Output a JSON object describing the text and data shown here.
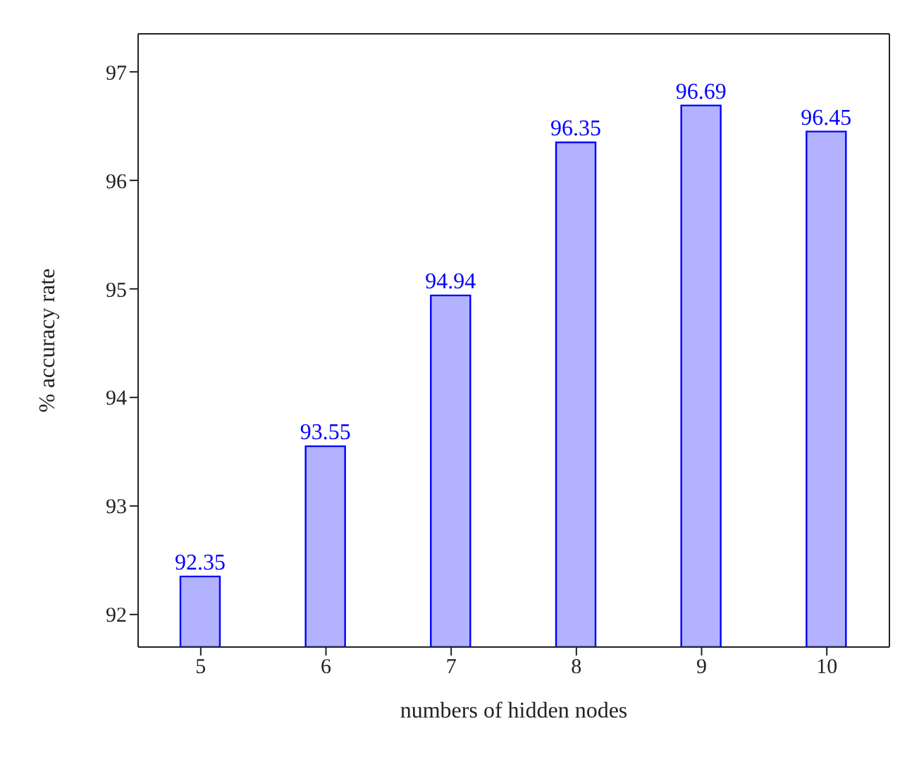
{
  "chart_data": {
    "type": "bar",
    "xlabel": "numbers of hidden nodes",
    "ylabel": "% accuracy rate",
    "categories": [
      "5",
      "6",
      "7",
      "8",
      "9",
      "10"
    ],
    "series": [
      {
        "color": "#0000ff",
        "values": [
          92.35,
          93.55,
          94.94,
          96.35,
          96.69,
          96.45
        ]
      }
    ],
    "ylim": [
      91.7,
      97.35
    ],
    "yticks": [
      92,
      93,
      94,
      95,
      96,
      97
    ],
    "data_labels": true,
    "grid": false,
    "legend": false
  }
}
